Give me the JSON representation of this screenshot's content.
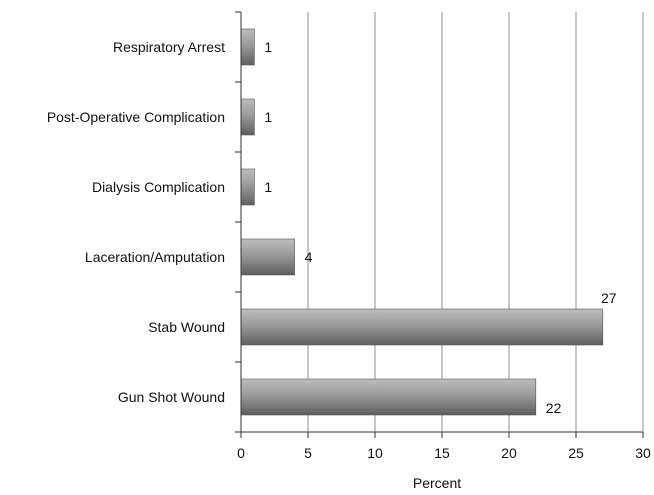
{
  "chart_data": {
    "type": "bar",
    "orientation": "horizontal",
    "categories": [
      "Respiratory Arrest",
      "Post-Operative Complication",
      "Dialysis Complication",
      "Laceration/Amputation",
      "Stab Wound",
      "Gun Shot Wound"
    ],
    "values": [
      1,
      1,
      1,
      4,
      27,
      22
    ],
    "data_labels": [
      "1",
      "1",
      "1",
      "4",
      "27",
      "22"
    ],
    "xlabel": "Percent",
    "ylabel": "",
    "xlim": [
      0,
      30
    ],
    "xticks": [
      "0",
      "5",
      "10",
      "15",
      "20",
      "25",
      "30"
    ],
    "grid": "vertical",
    "legend": "none",
    "colors": {
      "bar_light": "#bdbdbd",
      "bar_dark": "#5e5e5e",
      "grid": "#8f8f8f",
      "axis": "#333333"
    }
  }
}
